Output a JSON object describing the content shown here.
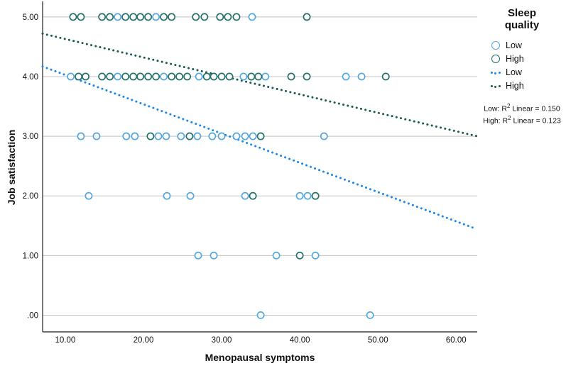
{
  "chart_data": {
    "type": "scatter",
    "title": "",
    "xlabel": "Menopausal symptoms",
    "ylabel": "Job satisfaction",
    "x_range": [
      7.1,
      62.7
    ],
    "y_range": [
      -0.28,
      5.26
    ],
    "grid": "horizontal-only",
    "legend_position": "right",
    "x_ticks": [
      {
        "label": "10.00",
        "value": 10
      },
      {
        "label": "20.00",
        "value": 20
      },
      {
        "label": "30.00",
        "value": 30
      },
      {
        "label": "40.00",
        "value": 40
      },
      {
        "label": "50.00",
        "value": 50
      },
      {
        "label": "60.00",
        "value": 60
      }
    ],
    "y_ticks": [
      {
        "label": "5.00",
        "value": 5
      },
      {
        "label": "4.00",
        "value": 4
      },
      {
        "label": "3.00",
        "value": 3
      },
      {
        "label": "2.00",
        "value": 2
      },
      {
        "label": "1.00",
        "value": 1
      },
      {
        "label": ".00",
        "value": 0
      }
    ],
    "colors": {
      "grid": "#C3C3C3",
      "axis": "#3F3F3F",
      "low_marker": "#55A7DF",
      "high_marker": "#26716B",
      "low_line": "#1E88E5",
      "high_line": "#1A5A50"
    },
    "series": [
      {
        "name": "Low",
        "marker": "circle",
        "color": "#55A7DF",
        "points": [
          [
            16.7,
            5
          ],
          [
            21.6,
            5
          ],
          [
            33.9,
            5
          ],
          [
            10.7,
            4
          ],
          [
            16.7,
            4
          ],
          [
            22.6,
            4
          ],
          [
            27.1,
            4
          ],
          [
            32.8,
            4
          ],
          [
            35.6,
            4
          ],
          [
            45.9,
            4
          ],
          [
            47.9,
            4
          ],
          [
            12,
            3
          ],
          [
            14,
            3
          ],
          [
            17.8,
            3
          ],
          [
            18.9,
            3
          ],
          [
            21.9,
            3
          ],
          [
            22.9,
            3
          ],
          [
            24.8,
            3
          ],
          [
            26.9,
            3
          ],
          [
            28.8,
            3
          ],
          [
            30,
            3
          ],
          [
            31.9,
            3
          ],
          [
            33,
            3
          ],
          [
            34,
            3
          ],
          [
            43.1,
            3
          ],
          [
            13,
            2
          ],
          [
            23,
            2
          ],
          [
            26,
            2
          ],
          [
            33,
            2
          ],
          [
            40,
            2
          ],
          [
            41,
            2
          ],
          [
            27,
            1
          ],
          [
            29,
            1
          ],
          [
            37,
            1
          ],
          [
            42,
            1
          ],
          [
            35,
            0
          ],
          [
            49,
            0
          ]
        ]
      },
      {
        "name": "High",
        "marker": "circle",
        "color": "#26716B",
        "points": [
          [
            11,
            5
          ],
          [
            12,
            5
          ],
          [
            14.7,
            5
          ],
          [
            15.7,
            5
          ],
          [
            17.7,
            5
          ],
          [
            18.7,
            5
          ],
          [
            19.6,
            5
          ],
          [
            20.6,
            5
          ],
          [
            22.6,
            5
          ],
          [
            23.6,
            5
          ],
          [
            26.7,
            5
          ],
          [
            27.8,
            5
          ],
          [
            29.8,
            5
          ],
          [
            30.8,
            5
          ],
          [
            31.9,
            5
          ],
          [
            40.9,
            5
          ],
          [
            11.7,
            4
          ],
          [
            12.6,
            4
          ],
          [
            14.7,
            4
          ],
          [
            15.7,
            4
          ],
          [
            17.7,
            4
          ],
          [
            18.7,
            4
          ],
          [
            19.6,
            4
          ],
          [
            20.6,
            4
          ],
          [
            21.6,
            4
          ],
          [
            23.6,
            4
          ],
          [
            24.6,
            4
          ],
          [
            25.6,
            4
          ],
          [
            28.1,
            4
          ],
          [
            29,
            4
          ],
          [
            30,
            4
          ],
          [
            31,
            4
          ],
          [
            33.8,
            4
          ],
          [
            34.7,
            4
          ],
          [
            38.9,
            4
          ],
          [
            40.9,
            4
          ],
          [
            51,
            4
          ],
          [
            20.9,
            3
          ],
          [
            25.9,
            3
          ],
          [
            35,
            3
          ],
          [
            34,
            2
          ],
          [
            42,
            2
          ],
          [
            40,
            1
          ]
        ]
      }
    ],
    "fit_lines": [
      {
        "name": "Low",
        "color": "#1E88E5",
        "x": [
          7.1,
          62.5
        ],
        "y": [
          4.17,
          1.45
        ]
      },
      {
        "name": "High",
        "color": "#1A5A50",
        "x": [
          7.1,
          62.7
        ],
        "y": [
          4.72,
          3.0
        ]
      }
    ]
  },
  "legend": {
    "title": "Sleep quality",
    "items": [
      {
        "marker": "circle",
        "label": "Low",
        "color": "#55A7DF"
      },
      {
        "marker": "circle",
        "label": "High",
        "color": "#26716B"
      },
      {
        "marker": "dotted-line",
        "label": "Low",
        "color": "#1E88E5"
      },
      {
        "marker": "dotted-line",
        "label": "High",
        "color": "#1A5A50"
      }
    ],
    "annotations": [
      {
        "full": "Low: R² Linear = 0.150",
        "pre": "Low: R",
        "sup": "2",
        "post": " Linear = 0.150"
      },
      {
        "full": "High: R² Linear = 0.123",
        "pre": "High: R",
        "sup": "2",
        "post": " Linear = 0.123"
      }
    ]
  }
}
